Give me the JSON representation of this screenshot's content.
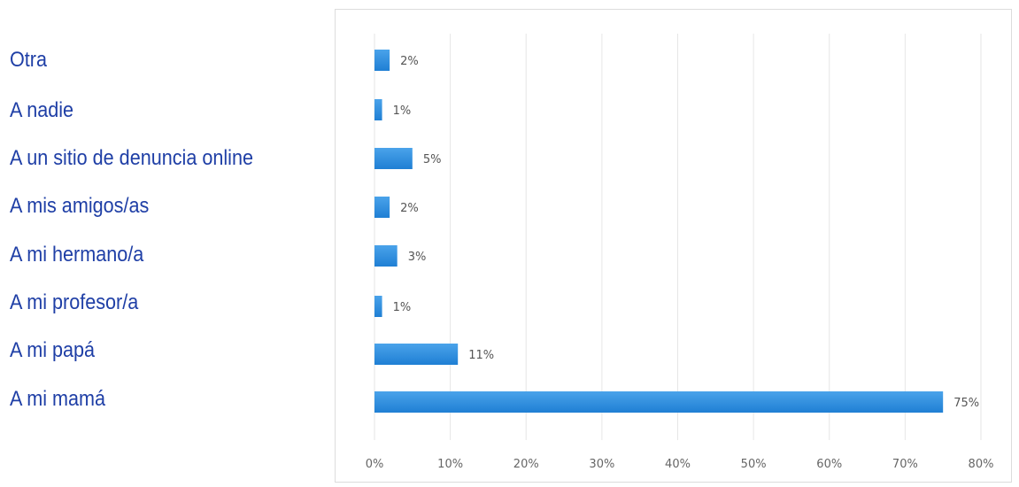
{
  "chart_data": {
    "type": "bar",
    "orientation": "horizontal",
    "categories": [
      "Otra",
      "A nadie",
      "A un sitio de denuncia online",
      "A mis amigos/as",
      "A mi hermano/a",
      "A mi profesor/a",
      "A mi papá",
      "A mi mamá"
    ],
    "values": [
      2,
      1,
      5,
      2,
      3,
      1,
      11,
      75
    ],
    "data_labels": [
      "2%",
      "1%",
      "5%",
      "2%",
      "3%",
      "1%",
      "11%",
      "75%"
    ],
    "xlim": [
      0,
      80
    ],
    "xticks": [
      0,
      10,
      20,
      30,
      40,
      50,
      60,
      70,
      80
    ],
    "xtick_labels": [
      "0%",
      "10%",
      "20%",
      "30%",
      "40%",
      "50%",
      "60%",
      "70%",
      "80%"
    ],
    "grid": "vertical",
    "colors": {
      "bar": "#1f7fd4",
      "bar_light": "#4aa3ea",
      "label_text": "#1f3fa6",
      "grid": "#e6e6e6"
    }
  }
}
